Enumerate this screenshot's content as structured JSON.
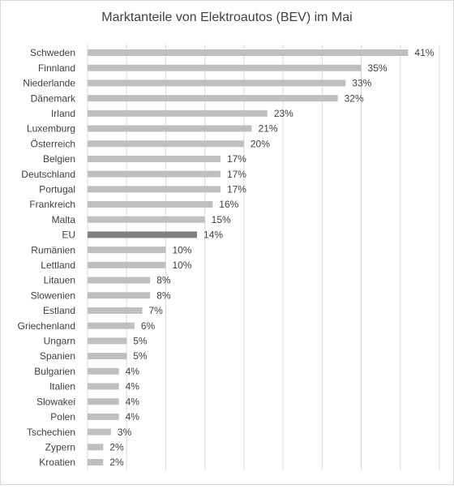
{
  "chart_data": {
    "type": "hbar",
    "title": "Marktanteile  von Elektroautos (BEV) im Mai",
    "categories": [
      "Schweden",
      "Finnland",
      "Niederlande",
      "Dänemark",
      "Irland",
      "Luxemburg",
      "Österreich",
      "Belgien",
      "Deutschland",
      "Portugal",
      "Frankreich",
      "Malta",
      "EU",
      "Rumänien",
      "Lettland",
      "Litauen",
      "Slowenien",
      "Estland",
      "Griechenland",
      "Ungarn",
      "Spanien",
      "Bulgarien",
      "Italien",
      "Slowakei",
      "Polen",
      "Tschechien",
      "Zypern",
      "Kroatien"
    ],
    "values": [
      41,
      35,
      33,
      32,
      23,
      21,
      20,
      17,
      17,
      17,
      16,
      15,
      14,
      10,
      10,
      8,
      8,
      7,
      6,
      5,
      5,
      4,
      4,
      4,
      4,
      3,
      2,
      2
    ],
    "value_labels": [
      "41%",
      "35%",
      "33%",
      "32%",
      "23%",
      "21%",
      "20%",
      "17%",
      "17%",
      "17%",
      "16%",
      "15%",
      "14%",
      "10%",
      "10%",
      "8%",
      "8%",
      "7%",
      "6%",
      "5%",
      "5%",
      "4%",
      "4%",
      "4%",
      "4%",
      "3%",
      "2%",
      "2%"
    ],
    "colors": [
      "#bfbfbf",
      "#bfbfbf",
      "#bfbfbf",
      "#bfbfbf",
      "#bfbfbf",
      "#bfbfbf",
      "#bfbfbf",
      "#bfbfbf",
      "#bfbfbf",
      "#bfbfbf",
      "#bfbfbf",
      "#bfbfbf",
      "#7f7f7f",
      "#bfbfbf",
      "#bfbfbf",
      "#bfbfbf",
      "#bfbfbf",
      "#bfbfbf",
      "#bfbfbf",
      "#bfbfbf",
      "#bfbfbf",
      "#bfbfbf",
      "#bfbfbf",
      "#bfbfbf",
      "#bfbfbf",
      "#bfbfbf",
      "#bfbfbf",
      "#bfbfbf"
    ],
    "xlim": [
      0,
      45
    ],
    "xticks": [
      0,
      5,
      10,
      15,
      20,
      25,
      30,
      35,
      40,
      45
    ],
    "grid": true
  }
}
